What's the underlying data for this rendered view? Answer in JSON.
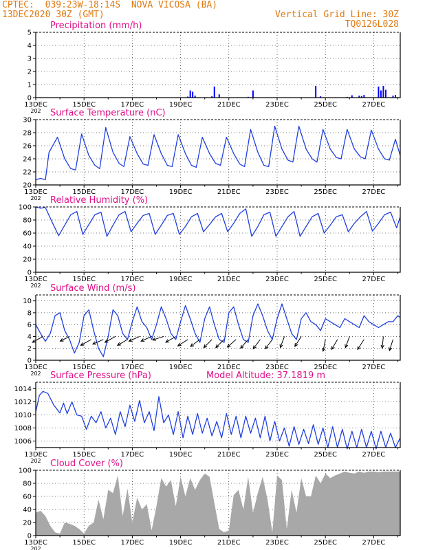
{
  "header": {
    "left_line1": "CPTEC:  039:23W-18:14S  NOVA VICOSA (BA)",
    "left_line2": "13DEC2020 30Z (GMT)",
    "right_line1": "Vertical Grid Line: 30Z",
    "right_line2": "TQ0126L028",
    "accent_color": "#e07a10"
  },
  "styles": {
    "title_color": "#e0108a",
    "line_color": "#1f3fe0",
    "bar_color": "#0000ff",
    "cloud_color": "#a8a8a8",
    "arrow_color": "#000000"
  },
  "x_axis": {
    "start_day": 13,
    "end_day": 28.1,
    "tick_days": [
      13,
      15,
      17,
      19,
      21,
      23,
      25,
      27
    ],
    "tick_labels": [
      "13DEC",
      "15DEC",
      "17DEC",
      "19DEC",
      "21DEC",
      "23DEC",
      "25DEC",
      "27DEC"
    ],
    "first_label_suffix": "202"
  },
  "chart_data": [
    {
      "id": "precip",
      "type": "bar",
      "title": "Precipitation (mm/h)",
      "ylim": [
        0,
        5
      ],
      "yticks": [
        0,
        1,
        2,
        3,
        4,
        5
      ],
      "x_days": [
        19.3,
        19.4,
        19.5,
        19.6,
        20.3,
        20.4,
        20.6,
        21.8,
        22.0,
        24.6,
        24.8,
        25.9,
        26.1,
        26.4,
        26.5,
        26.6,
        27.2,
        27.3,
        27.4,
        27.5,
        27.8,
        27.9
      ],
      "values": [
        0.08,
        0.55,
        0.45,
        0.15,
        0.1,
        0.85,
        0.25,
        0.06,
        0.55,
        0.9,
        0.1,
        0.06,
        0.18,
        0.15,
        0.12,
        0.2,
        0.85,
        0.55,
        0.9,
        0.6,
        0.15,
        0.2
      ]
    },
    {
      "id": "temp",
      "type": "line",
      "title": "Surface Temperature (nC)",
      "ylim": [
        20,
        30
      ],
      "yticks": [
        20,
        22,
        24,
        26,
        28,
        30
      ],
      "x_days": [
        13.0,
        13.2,
        13.4,
        13.55,
        13.9,
        14.2,
        14.45,
        14.65,
        14.9,
        15.2,
        15.45,
        15.65,
        15.9,
        16.2,
        16.45,
        16.65,
        16.9,
        17.2,
        17.45,
        17.65,
        17.9,
        18.2,
        18.45,
        18.65,
        18.9,
        19.2,
        19.45,
        19.65,
        19.9,
        20.2,
        20.45,
        20.65,
        20.9,
        21.2,
        21.45,
        21.65,
        21.9,
        22.2,
        22.45,
        22.65,
        22.9,
        23.2,
        23.45,
        23.65,
        23.9,
        24.2,
        24.45,
        24.65,
        24.9,
        25.2,
        25.45,
        25.65,
        25.9,
        26.2,
        26.45,
        26.65,
        26.9,
        27.2,
        27.45,
        27.65,
        27.9,
        28.1
      ],
      "values": [
        20.8,
        21.0,
        20.8,
        25.0,
        27.3,
        24.0,
        22.5,
        22.3,
        27.8,
        24.5,
        23.0,
        22.5,
        28.8,
        25.0,
        23.3,
        22.8,
        27.4,
        24.8,
        23.2,
        23.0,
        27.7,
        24.8,
        23.0,
        22.8,
        27.7,
        24.8,
        23.0,
        22.7,
        27.3,
        24.8,
        23.3,
        23.0,
        27.3,
        24.8,
        23.2,
        22.8,
        28.5,
        25.0,
        23.0,
        22.8,
        29.0,
        25.5,
        23.8,
        23.5,
        29.0,
        25.5,
        24.0,
        23.5,
        28.5,
        25.5,
        24.2,
        24.0,
        28.5,
        25.5,
        24.3,
        24.0,
        28.4,
        25.5,
        24.0,
        23.8,
        27.0,
        24.5
      ]
    },
    {
      "id": "rh",
      "type": "line",
      "title": "Relative Humidity (%)",
      "ylim": [
        0,
        100
      ],
      "yticks": [
        0,
        20,
        40,
        60,
        80,
        100
      ],
      "x_days": [
        13.0,
        13.2,
        13.4,
        13.7,
        13.95,
        14.2,
        14.45,
        14.7,
        14.95,
        15.2,
        15.45,
        15.7,
        15.95,
        16.2,
        16.45,
        16.7,
        16.95,
        17.2,
        17.45,
        17.7,
        17.95,
        18.2,
        18.45,
        18.7,
        18.95,
        19.2,
        19.45,
        19.7,
        19.95,
        20.2,
        20.45,
        20.7,
        20.95,
        21.2,
        21.45,
        21.7,
        21.95,
        22.2,
        22.45,
        22.7,
        22.95,
        23.2,
        23.45,
        23.7,
        23.95,
        24.2,
        24.45,
        24.7,
        24.95,
        25.2,
        25.45,
        25.7,
        25.95,
        26.2,
        26.45,
        26.7,
        26.95,
        27.2,
        27.45,
        27.7,
        27.95,
        28.1
      ],
      "values": [
        100,
        98,
        99,
        75,
        56,
        72,
        88,
        93,
        58,
        73,
        88,
        92,
        55,
        72,
        88,
        93,
        62,
        75,
        87,
        90,
        58,
        72,
        87,
        90,
        58,
        70,
        85,
        90,
        62,
        73,
        85,
        90,
        62,
        75,
        90,
        97,
        55,
        70,
        88,
        92,
        55,
        70,
        85,
        93,
        55,
        70,
        85,
        90,
        60,
        72,
        85,
        88,
        62,
        75,
        85,
        93,
        63,
        75,
        88,
        92,
        68,
        85
      ]
    },
    {
      "id": "wind",
      "type": "line",
      "title": "Surface Wind (m/s)",
      "ylim": [
        0,
        11
      ],
      "yticks": [
        0,
        2,
        4,
        6,
        8,
        10
      ],
      "x_days": [
        13.0,
        13.2,
        13.4,
        13.6,
        13.8,
        14.0,
        14.2,
        14.4,
        14.6,
        14.8,
        15.0,
        15.2,
        15.4,
        15.6,
        15.8,
        16.0,
        16.2,
        16.4,
        16.6,
        16.8,
        17.0,
        17.2,
        17.4,
        17.6,
        17.8,
        18.0,
        18.2,
        18.4,
        18.6,
        18.8,
        19.0,
        19.2,
        19.4,
        19.6,
        19.8,
        20.0,
        20.2,
        20.4,
        20.6,
        20.8,
        21.0,
        21.2,
        21.4,
        21.6,
        21.8,
        22.0,
        22.2,
        22.4,
        22.6,
        22.8,
        23.0,
        23.2,
        23.4,
        23.6,
        23.8,
        24.0,
        24.2,
        24.4,
        24.6,
        24.8,
        25.0,
        25.2,
        25.4,
        25.6,
        25.8,
        26.0,
        26.2,
        26.4,
        26.6,
        26.8,
        27.0,
        27.2,
        27.4,
        27.6,
        27.8,
        28.0,
        28.1
      ],
      "values": [
        6.0,
        4.5,
        3.2,
        4.5,
        7.5,
        8.0,
        5.0,
        3.5,
        1.2,
        3.0,
        7.5,
        8.5,
        5.0,
        2.0,
        0.6,
        4.0,
        8.5,
        7.5,
        4.5,
        3.5,
        6.5,
        9.0,
        6.5,
        5.5,
        3.5,
        6.0,
        9.0,
        7.0,
        4.5,
        3.5,
        6.5,
        9.2,
        7.0,
        4.5,
        3.0,
        7.0,
        9.0,
        6.0,
        3.5,
        3.0,
        8.0,
        9.0,
        6.0,
        3.5,
        3.0,
        7.5,
        9.5,
        7.5,
        5.0,
        3.5,
        7.0,
        9.5,
        7.0,
        4.5,
        3.5,
        7.0,
        8.0,
        6.5,
        6.0,
        5.0,
        7.0,
        6.5,
        6.0,
        5.5,
        7.0,
        6.5,
        6.0,
        5.5,
        7.5,
        6.5,
        6.0,
        5.5,
        6.0,
        6.5,
        6.5,
        7.5,
        7.2
      ],
      "vectors": [
        {
          "day": 13.3,
          "mag": 4,
          "u": -0.9,
          "v": -0.5
        },
        {
          "day": 14.4,
          "mag": 4,
          "u": -0.8,
          "v": -0.4
        },
        {
          "day": 15.3,
          "mag": 3.5,
          "u": -0.9,
          "v": -0.5
        },
        {
          "day": 15.8,
          "mag": 3.5,
          "u": -0.9,
          "v": -0.4
        },
        {
          "day": 16.3,
          "mag": 4,
          "u": -0.9,
          "v": -0.5
        },
        {
          "day": 16.8,
          "mag": 3.5,
          "u": -0.85,
          "v": -0.5
        },
        {
          "day": 17.3,
          "mag": 4,
          "u": -0.9,
          "v": -0.4
        },
        {
          "day": 17.8,
          "mag": 4,
          "u": -0.9,
          "v": -0.4
        },
        {
          "day": 18.3,
          "mag": 4,
          "u": -0.95,
          "v": -0.3
        },
        {
          "day": 18.8,
          "mag": 4,
          "u": -0.85,
          "v": -0.5
        },
        {
          "day": 19.3,
          "mag": 3.5,
          "u": -0.85,
          "v": -0.55
        },
        {
          "day": 19.8,
          "mag": 3.5,
          "u": -0.8,
          "v": -0.6
        },
        {
          "day": 20.3,
          "mag": 3.5,
          "u": -0.7,
          "v": -0.7
        },
        {
          "day": 20.8,
          "mag": 3.5,
          "u": -0.7,
          "v": -0.7
        },
        {
          "day": 21.3,
          "mag": 3.5,
          "u": -0.75,
          "v": -0.65
        },
        {
          "day": 21.8,
          "mag": 3.5,
          "u": -0.65,
          "v": -0.75
        },
        {
          "day": 22.3,
          "mag": 3.5,
          "u": -0.6,
          "v": -0.8
        },
        {
          "day": 22.8,
          "mag": 3.5,
          "u": -0.6,
          "v": -0.8
        },
        {
          "day": 23.3,
          "mag": 4,
          "u": -0.35,
          "v": -0.95
        },
        {
          "day": 24.0,
          "mag": 4,
          "u": -0.55,
          "v": -0.85
        },
        {
          "day": 25.0,
          "mag": 3.5,
          "u": -0.2,
          "v": -1.0
        },
        {
          "day": 25.5,
          "mag": 3.5,
          "u": -0.5,
          "v": -0.85
        },
        {
          "day": 26.0,
          "mag": 4,
          "u": -0.35,
          "v": -0.95
        },
        {
          "day": 26.6,
          "mag": 3.5,
          "u": -0.55,
          "v": -0.85
        },
        {
          "day": 27.4,
          "mag": 4,
          "u": -0.1,
          "v": -1.0
        },
        {
          "day": 27.8,
          "mag": 3.5,
          "u": -0.3,
          "v": -0.95
        }
      ]
    },
    {
      "id": "pres",
      "type": "line",
      "title": "Surface Pressure (hPa)",
      "annotation": "Model Altitude: 37.1819 m",
      "ylim": [
        1005,
        1015
      ],
      "yticks": [
        1006,
        1008,
        1010,
        1012,
        1014
      ],
      "x_days": [
        13.0,
        13.15,
        13.3,
        13.5,
        13.75,
        14.0,
        14.15,
        14.3,
        14.5,
        14.7,
        14.9,
        15.1,
        15.3,
        15.5,
        15.7,
        15.9,
        16.1,
        16.3,
        16.5,
        16.7,
        16.9,
        17.1,
        17.3,
        17.5,
        17.7,
        17.9,
        18.1,
        18.3,
        18.5,
        18.7,
        18.9,
        19.1,
        19.3,
        19.5,
        19.7,
        19.9,
        20.1,
        20.3,
        20.5,
        20.7,
        20.9,
        21.1,
        21.3,
        21.5,
        21.7,
        21.9,
        22.1,
        22.3,
        22.5,
        22.7,
        22.9,
        23.1,
        23.3,
        23.5,
        23.7,
        23.9,
        24.1,
        24.3,
        24.5,
        24.7,
        24.9,
        25.1,
        25.3,
        25.5,
        25.7,
        25.9,
        26.1,
        26.3,
        26.5,
        26.7,
        26.9,
        27.1,
        27.3,
        27.5,
        27.7,
        27.9,
        28.1
      ],
      "values": [
        1010.5,
        1013.0,
        1013.6,
        1013.3,
        1011.5,
        1010.3,
        1011.8,
        1010.2,
        1012.0,
        1010.0,
        1009.8,
        1007.8,
        1009.8,
        1008.8,
        1010.5,
        1008.0,
        1009.5,
        1007.0,
        1010.5,
        1008.2,
        1011.5,
        1009.0,
        1012.2,
        1008.8,
        1010.5,
        1007.6,
        1012.8,
        1008.8,
        1010.0,
        1007.0,
        1010.5,
        1006.5,
        1009.8,
        1007.0,
        1010.2,
        1007.2,
        1009.5,
        1006.8,
        1009.0,
        1006.5,
        1010.2,
        1007.0,
        1009.8,
        1006.5,
        1009.8,
        1007.2,
        1009.5,
        1006.5,
        1009.8,
        1006.0,
        1009.0,
        1006.0,
        1008.0,
        1005.2,
        1008.2,
        1005.5,
        1007.8,
        1005.6,
        1008.5,
        1005.5,
        1008.0,
        1005.0,
        1008.2,
        1005.0,
        1007.8,
        1004.8,
        1007.5,
        1005.0,
        1007.8,
        1005.0,
        1007.5,
        1004.8,
        1007.5,
        1005.0,
        1007.2,
        1005.0,
        1006.5
      ]
    },
    {
      "id": "cloud",
      "type": "area",
      "title": "Cloud Cover (%)",
      "ylim": [
        0,
        100
      ],
      "yticks": [
        0,
        20,
        40,
        60,
        80,
        100
      ],
      "x_days": [
        13.0,
        13.2,
        13.4,
        13.6,
        13.8,
        14.0,
        14.2,
        14.4,
        14.6,
        14.8,
        15.0,
        15.2,
        15.4,
        15.6,
        15.8,
        16.0,
        16.2,
        16.4,
        16.6,
        16.8,
        17.0,
        17.2,
        17.4,
        17.6,
        17.8,
        18.0,
        18.2,
        18.4,
        18.6,
        18.8,
        19.0,
        19.2,
        19.4,
        19.6,
        19.8,
        20.0,
        20.2,
        20.4,
        20.6,
        20.8,
        21.0,
        21.2,
        21.4,
        21.6,
        21.8,
        22.0,
        22.2,
        22.4,
        22.6,
        22.8,
        23.0,
        23.2,
        23.4,
        23.6,
        23.8,
        24.0,
        24.2,
        24.4,
        24.6,
        24.8,
        25.0,
        25.2,
        25.4,
        25.6,
        25.8,
        26.0,
        26.2,
        26.4,
        26.6,
        26.8,
        27.0,
        27.2,
        27.4,
        27.6,
        27.8,
        28.0,
        28.1
      ],
      "values": [
        35,
        38,
        30,
        15,
        5,
        3,
        20,
        18,
        15,
        10,
        3,
        15,
        20,
        55,
        25,
        70,
        65,
        92,
        30,
        72,
        20,
        58,
        40,
        48,
        8,
        45,
        88,
        75,
        85,
        45,
        90,
        60,
        88,
        70,
        85,
        95,
        90,
        50,
        10,
        5,
        8,
        62,
        70,
        40,
        90,
        35,
        65,
        90,
        55,
        5,
        92,
        85,
        10,
        70,
        35,
        88,
        60,
        60,
        92,
        80,
        95,
        88,
        92,
        95,
        98,
        96,
        95,
        98,
        96,
        98,
        98,
        97,
        98,
        98,
        98,
        98,
        98
      ]
    }
  ]
}
